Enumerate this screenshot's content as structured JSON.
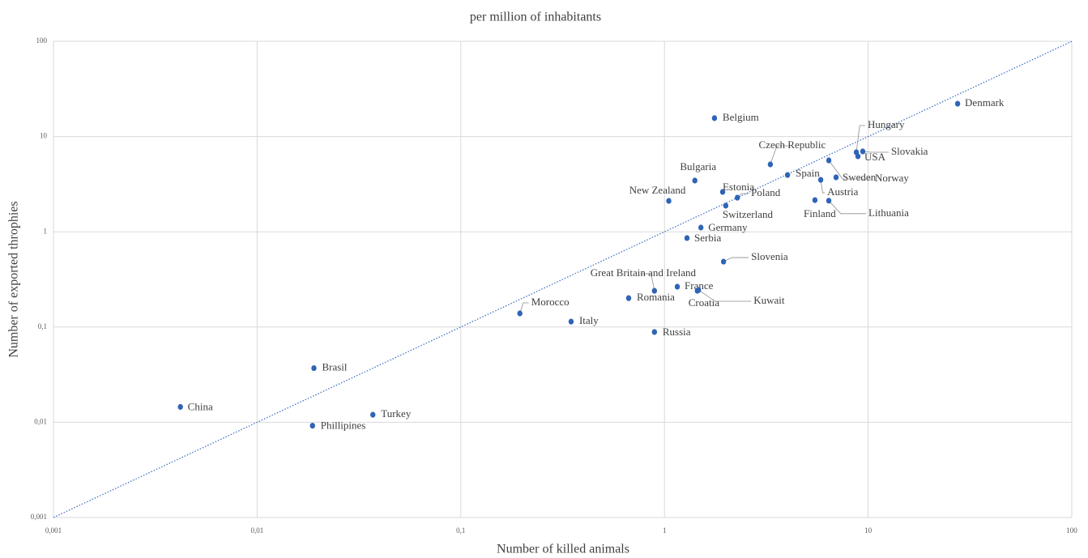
{
  "chart_data": {
    "type": "scatter",
    "title": "per million of inhabitants",
    "x_label": "Number of killed animals",
    "y_label": "Number of exported throphies",
    "log_x": true,
    "log_y": true,
    "grid": true,
    "color": "#2f64b6",
    "xlim": [
      0.001,
      100
    ],
    "ylim": [
      0.001,
      100
    ],
    "xticks": [
      {
        "value": 0.001,
        "label": "0,001"
      },
      {
        "value": 0.01,
        "label": "0,01"
      },
      {
        "value": 0.1,
        "label": "0,1"
      },
      1,
      10,
      100
    ],
    "yticks": [
      {
        "value": 0.001,
        "label": "0,001"
      },
      {
        "value": 0.01,
        "label": "0,01"
      },
      {
        "value": 0.1,
        "label": "0,1"
      },
      1,
      10,
      100
    ],
    "points": [
      {
        "label": "China",
        "x": 0.0042,
        "y": 0.0145
      },
      {
        "label": "Brasil",
        "x": 0.019,
        "y": 0.037
      },
      {
        "label": "Phillipines",
        "x": 0.0187,
        "y": 0.0092
      },
      {
        "label": "Turkey",
        "x": 0.037,
        "y": 0.012
      },
      {
        "label": "Morocco",
        "x": 0.195,
        "y": 0.139
      },
      {
        "label": "Italy",
        "x": 0.348,
        "y": 0.114
      },
      {
        "label": "Romania",
        "x": 0.667,
        "y": 0.201
      },
      {
        "label": "Russia",
        "x": 0.893,
        "y": 0.0886
      },
      {
        "label": "Great Britain and Ireland",
        "x": 0.893,
        "y": 0.24
      },
      {
        "label": "France",
        "x": 1.156,
        "y": 0.265
      },
      {
        "label": "Croatia",
        "x": 1.45,
        "y": 0.24
      },
      {
        "label": "Kuwait",
        "x": 1.47,
        "y": 0.245
      },
      {
        "label": "Slovenia",
        "x": 1.95,
        "y": 0.486
      },
      {
        "label": "Serbia",
        "x": 1.29,
        "y": 0.859
      },
      {
        "label": "Germany",
        "x": 1.51,
        "y": 1.107
      },
      {
        "label": "New Zealand",
        "x": 1.05,
        "y": 2.11
      },
      {
        "label": "Switzerland",
        "x": 2.0,
        "y": 1.88
      },
      {
        "label": "Estonia",
        "x": 1.93,
        "y": 2.62
      },
      {
        "label": "Poland",
        "x": 2.28,
        "y": 2.28
      },
      {
        "label": "Bulgaria",
        "x": 1.41,
        "y": 3.45
      },
      {
        "label": "Belgium",
        "x": 1.76,
        "y": 15.6
      },
      {
        "label": "Czech Republic",
        "x": 3.31,
        "y": 5.1
      },
      {
        "label": "Spain",
        "x": 4.02,
        "y": 3.95
      },
      {
        "label": "Austria",
        "x": 5.85,
        "y": 3.51
      },
      {
        "label": "Finland",
        "x": 5.48,
        "y": 2.15
      },
      {
        "label": "Lithuania",
        "x": 6.41,
        "y": 2.12
      },
      {
        "label": "Sweden",
        "x": 6.96,
        "y": 3.73
      },
      {
        "label": "Norway",
        "x": 6.41,
        "y": 5.62
      },
      {
        "label": "Hungary",
        "x": 8.75,
        "y": 6.84
      },
      {
        "label": "USA",
        "x": 8.91,
        "y": 6.2
      },
      {
        "label": "Slovakia",
        "x": 9.41,
        "y": 6.98
      },
      {
        "label": "Denmark",
        "x": 27.5,
        "y": 22.1
      }
    ]
  }
}
